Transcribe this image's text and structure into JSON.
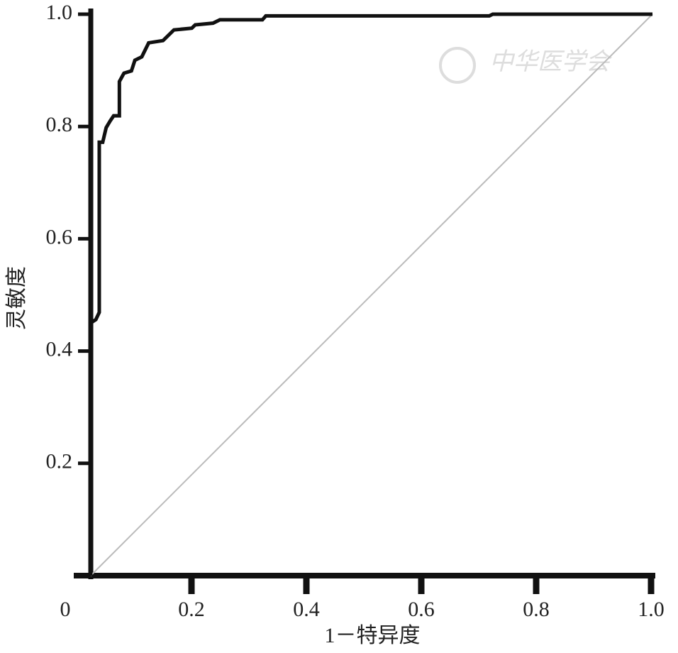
{
  "chart_data": {
    "type": "line",
    "x_label": "1－特异度",
    "y_label": "灵敏度",
    "watermark": "中华医学会",
    "xlim": [
      0,
      1
    ],
    "ylim": [
      0,
      1
    ],
    "xticks": [
      {
        "value": 0,
        "label": "0"
      },
      0.2,
      0.4,
      0.6,
      0.8,
      {
        "value": 1,
        "label": "1.0"
      }
    ],
    "yticks": [
      0.2,
      0.4,
      0.6,
      0.8,
      {
        "value": 1,
        "label": "1.0"
      }
    ],
    "series": [
      {
        "color": "#111111",
        "width": 5,
        "x": [
          0.022,
          0.022,
          0.031,
          0.037,
          0.037,
          0.043,
          0.049,
          0.056,
          0.062,
          0.072,
          0.072,
          0.08,
          0.093,
          0.099,
          0.111,
          0.123,
          0.148,
          0.167,
          0.198,
          0.204,
          0.235,
          0.247,
          0.321,
          0.327,
          0.716,
          0.722,
          1
        ],
        "values": [
          0,
          0.45,
          0.456,
          0.469,
          0.772,
          0.772,
          0.798,
          0.81,
          0.819,
          0.819,
          0.88,
          0.895,
          0.899,
          0.918,
          0.924,
          0.949,
          0.953,
          0.972,
          0.975,
          0.981,
          0.984,
          0.99,
          0.99,
          0.997,
          0.997,
          1,
          1
        ]
      },
      {
        "color": "#bbbbbb",
        "width": 2,
        "x": [
          0.022,
          1
        ],
        "values": [
          0,
          1
        ]
      }
    ]
  }
}
